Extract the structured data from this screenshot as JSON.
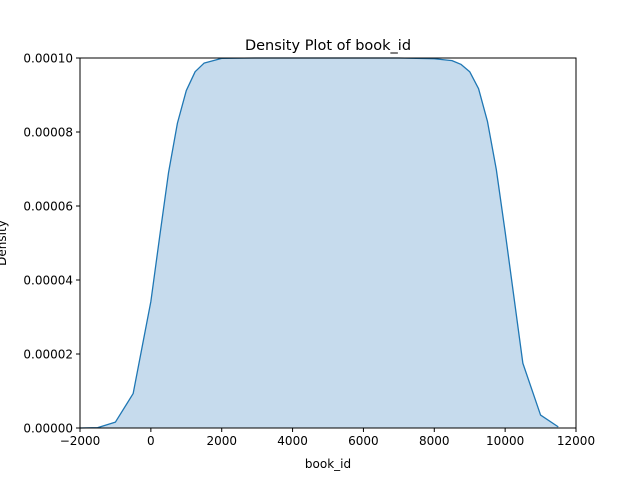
{
  "chart_data": {
    "type": "area",
    "title": "Density Plot of book_id",
    "xlabel": "book_id",
    "ylabel": "Density",
    "xlim": [
      -2000,
      12000
    ],
    "ylim": [
      0,
      0.0001
    ],
    "x_ticks": [
      -2000,
      0,
      2000,
      4000,
      6000,
      8000,
      10000,
      12000
    ],
    "y_ticks": [
      0,
      2e-05,
      4e-05,
      6e-05,
      8e-05,
      0.0001
    ],
    "x_tick_labels": [
      "−2000",
      "0",
      "2000",
      "4000",
      "6000",
      "8000",
      "10000",
      "12000"
    ],
    "y_tick_labels": [
      "0.00000",
      "0.00002",
      "0.00004",
      "0.00006",
      "0.00008",
      "0.00010"
    ],
    "grid": false,
    "series": [
      {
        "line_color": "#1f77b4",
        "fill_color": "#c6dbed",
        "x": [
          -2200,
          -1500,
          -1000,
          -500,
          0,
          250,
          500,
          750,
          1000,
          1250,
          1500,
          2000,
          3000,
          5000,
          7000,
          8000,
          8500,
          8750,
          9000,
          9250,
          9500,
          9750,
          10000,
          10500,
          11000,
          11500
        ],
        "y": [
          0,
          1e-07,
          1.6e-06,
          9.3e-06,
          3.42e-05,
          5.18e-05,
          6.91e-05,
          8.24e-05,
          9.12e-05,
          9.63e-05,
          9.86e-05,
          9.99e-05,
          0.0001,
          0.0001,
          0.0001,
          9.98e-05,
          9.93e-05,
          9.83e-05,
          9.63e-05,
          9.17e-05,
          8.29e-05,
          6.99e-05,
          5.3e-05,
          1.75e-05,
          3.5e-06,
          3e-07
        ]
      }
    ]
  }
}
